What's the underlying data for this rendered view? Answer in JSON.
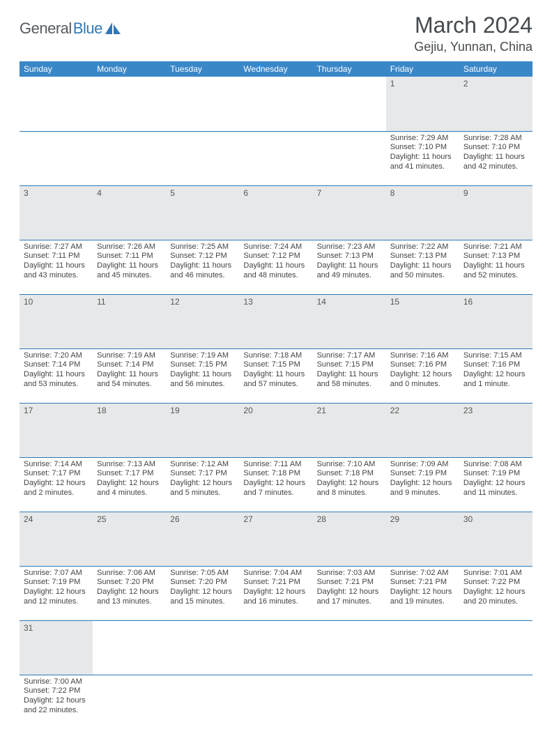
{
  "brand": {
    "part1": "General",
    "part2": "Blue",
    "logo_color": "#2f78b7",
    "text_color": "#555b60"
  },
  "title": "March 2024",
  "location": "Gejiu, Yunnan, China",
  "colors": {
    "header_bg": "#3a87c8",
    "header_fg": "#ffffff",
    "row_border": "#2f78b7",
    "daynum_bg": "#e7e8e9",
    "body_text": "#444444",
    "page_bg": "#ffffff"
  },
  "weekdays": [
    "Sunday",
    "Monday",
    "Tuesday",
    "Wednesday",
    "Thursday",
    "Friday",
    "Saturday"
  ],
  "weeks": [
    [
      null,
      null,
      null,
      null,
      null,
      {
        "n": "1",
        "sr": "Sunrise: 7:29 AM",
        "ss": "Sunset: 7:10 PM",
        "d1": "Daylight: 11 hours",
        "d2": "and 41 minutes."
      },
      {
        "n": "2",
        "sr": "Sunrise: 7:28 AM",
        "ss": "Sunset: 7:10 PM",
        "d1": "Daylight: 11 hours",
        "d2": "and 42 minutes."
      }
    ],
    [
      {
        "n": "3",
        "sr": "Sunrise: 7:27 AM",
        "ss": "Sunset: 7:11 PM",
        "d1": "Daylight: 11 hours",
        "d2": "and 43 minutes."
      },
      {
        "n": "4",
        "sr": "Sunrise: 7:26 AM",
        "ss": "Sunset: 7:11 PM",
        "d1": "Daylight: 11 hours",
        "d2": "and 45 minutes."
      },
      {
        "n": "5",
        "sr": "Sunrise: 7:25 AM",
        "ss": "Sunset: 7:12 PM",
        "d1": "Daylight: 11 hours",
        "d2": "and 46 minutes."
      },
      {
        "n": "6",
        "sr": "Sunrise: 7:24 AM",
        "ss": "Sunset: 7:12 PM",
        "d1": "Daylight: 11 hours",
        "d2": "and 48 minutes."
      },
      {
        "n": "7",
        "sr": "Sunrise: 7:23 AM",
        "ss": "Sunset: 7:13 PM",
        "d1": "Daylight: 11 hours",
        "d2": "and 49 minutes."
      },
      {
        "n": "8",
        "sr": "Sunrise: 7:22 AM",
        "ss": "Sunset: 7:13 PM",
        "d1": "Daylight: 11 hours",
        "d2": "and 50 minutes."
      },
      {
        "n": "9",
        "sr": "Sunrise: 7:21 AM",
        "ss": "Sunset: 7:13 PM",
        "d1": "Daylight: 11 hours",
        "d2": "and 52 minutes."
      }
    ],
    [
      {
        "n": "10",
        "sr": "Sunrise: 7:20 AM",
        "ss": "Sunset: 7:14 PM",
        "d1": "Daylight: 11 hours",
        "d2": "and 53 minutes."
      },
      {
        "n": "11",
        "sr": "Sunrise: 7:19 AM",
        "ss": "Sunset: 7:14 PM",
        "d1": "Daylight: 11 hours",
        "d2": "and 54 minutes."
      },
      {
        "n": "12",
        "sr": "Sunrise: 7:19 AM",
        "ss": "Sunset: 7:15 PM",
        "d1": "Daylight: 11 hours",
        "d2": "and 56 minutes."
      },
      {
        "n": "13",
        "sr": "Sunrise: 7:18 AM",
        "ss": "Sunset: 7:15 PM",
        "d1": "Daylight: 11 hours",
        "d2": "and 57 minutes."
      },
      {
        "n": "14",
        "sr": "Sunrise: 7:17 AM",
        "ss": "Sunset: 7:15 PM",
        "d1": "Daylight: 11 hours",
        "d2": "and 58 minutes."
      },
      {
        "n": "15",
        "sr": "Sunrise: 7:16 AM",
        "ss": "Sunset: 7:16 PM",
        "d1": "Daylight: 12 hours",
        "d2": "and 0 minutes."
      },
      {
        "n": "16",
        "sr": "Sunrise: 7:15 AM",
        "ss": "Sunset: 7:16 PM",
        "d1": "Daylight: 12 hours",
        "d2": "and 1 minute."
      }
    ],
    [
      {
        "n": "17",
        "sr": "Sunrise: 7:14 AM",
        "ss": "Sunset: 7:17 PM",
        "d1": "Daylight: 12 hours",
        "d2": "and 2 minutes."
      },
      {
        "n": "18",
        "sr": "Sunrise: 7:13 AM",
        "ss": "Sunset: 7:17 PM",
        "d1": "Daylight: 12 hours",
        "d2": "and 4 minutes."
      },
      {
        "n": "19",
        "sr": "Sunrise: 7:12 AM",
        "ss": "Sunset: 7:17 PM",
        "d1": "Daylight: 12 hours",
        "d2": "and 5 minutes."
      },
      {
        "n": "20",
        "sr": "Sunrise: 7:11 AM",
        "ss": "Sunset: 7:18 PM",
        "d1": "Daylight: 12 hours",
        "d2": "and 7 minutes."
      },
      {
        "n": "21",
        "sr": "Sunrise: 7:10 AM",
        "ss": "Sunset: 7:18 PM",
        "d1": "Daylight: 12 hours",
        "d2": "and 8 minutes."
      },
      {
        "n": "22",
        "sr": "Sunrise: 7:09 AM",
        "ss": "Sunset: 7:19 PM",
        "d1": "Daylight: 12 hours",
        "d2": "and 9 minutes."
      },
      {
        "n": "23",
        "sr": "Sunrise: 7:08 AM",
        "ss": "Sunset: 7:19 PM",
        "d1": "Daylight: 12 hours",
        "d2": "and 11 minutes."
      }
    ],
    [
      {
        "n": "24",
        "sr": "Sunrise: 7:07 AM",
        "ss": "Sunset: 7:19 PM",
        "d1": "Daylight: 12 hours",
        "d2": "and 12 minutes."
      },
      {
        "n": "25",
        "sr": "Sunrise: 7:06 AM",
        "ss": "Sunset: 7:20 PM",
        "d1": "Daylight: 12 hours",
        "d2": "and 13 minutes."
      },
      {
        "n": "26",
        "sr": "Sunrise: 7:05 AM",
        "ss": "Sunset: 7:20 PM",
        "d1": "Daylight: 12 hours",
        "d2": "and 15 minutes."
      },
      {
        "n": "27",
        "sr": "Sunrise: 7:04 AM",
        "ss": "Sunset: 7:21 PM",
        "d1": "Daylight: 12 hours",
        "d2": "and 16 minutes."
      },
      {
        "n": "28",
        "sr": "Sunrise: 7:03 AM",
        "ss": "Sunset: 7:21 PM",
        "d1": "Daylight: 12 hours",
        "d2": "and 17 minutes."
      },
      {
        "n": "29",
        "sr": "Sunrise: 7:02 AM",
        "ss": "Sunset: 7:21 PM",
        "d1": "Daylight: 12 hours",
        "d2": "and 19 minutes."
      },
      {
        "n": "30",
        "sr": "Sunrise: 7:01 AM",
        "ss": "Sunset: 7:22 PM",
        "d1": "Daylight: 12 hours",
        "d2": "and 20 minutes."
      }
    ],
    [
      {
        "n": "31",
        "sr": "Sunrise: 7:00 AM",
        "ss": "Sunset: 7:22 PM",
        "d1": "Daylight: 12 hours",
        "d2": "and 22 minutes."
      },
      null,
      null,
      null,
      null,
      null,
      null
    ]
  ]
}
